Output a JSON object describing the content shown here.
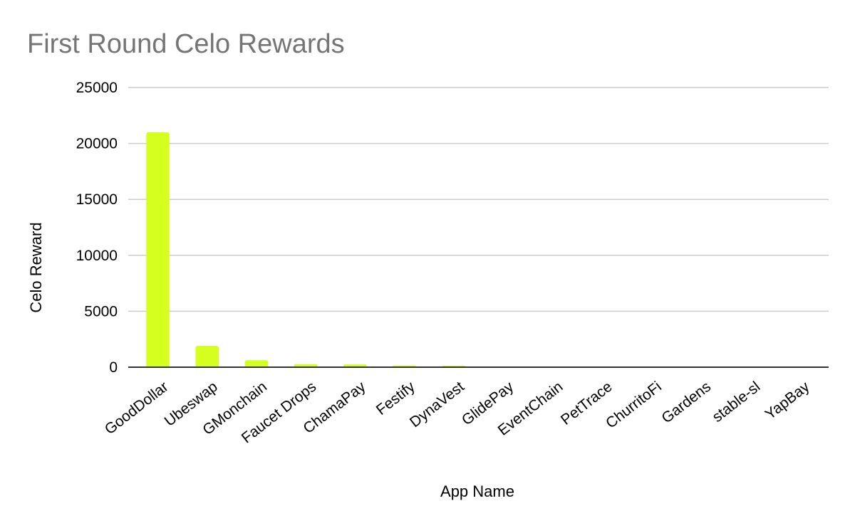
{
  "chart_data": {
    "type": "bar",
    "title": "First Round Celo Rewards",
    "xlabel": "App Name",
    "ylabel": "Celo Reward",
    "ylim": [
      0,
      25000
    ],
    "yticks": [
      0,
      5000,
      10000,
      15000,
      20000,
      25000
    ],
    "grid": true,
    "legend": "none",
    "bar_color": "#d4ff1f",
    "categories": [
      "GoodDollar",
      "Ubeswap",
      "GMonchain",
      "Faucet Drops",
      "ChamaPay",
      "Festify",
      "DynaVest",
      "GlidePay",
      "EventChain",
      "PetTrace",
      "ChurritoFi",
      "Gardens",
      "stable-sl",
      "YapBay"
    ],
    "values": [
      21000,
      1900,
      620,
      270,
      250,
      150,
      130,
      30,
      25,
      20,
      20,
      15,
      10,
      10
    ]
  }
}
